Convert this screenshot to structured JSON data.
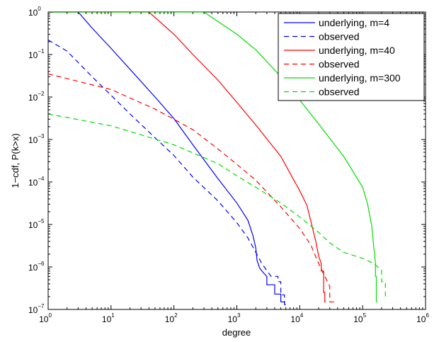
{
  "chart_data": {
    "type": "line",
    "title": "",
    "xlabel": "degree",
    "ylabel": "1−cdf, P(k>x)",
    "x_scale": "log",
    "y_scale": "log",
    "xlim": [
      1,
      1000000
    ],
    "ylim": [
      1e-07,
      1
    ],
    "x_ticks": [
      {
        "base": "10",
        "exp": "0",
        "value": 1
      },
      {
        "base": "10",
        "exp": "1",
        "value": 10
      },
      {
        "base": "10",
        "exp": "2",
        "value": 100
      },
      {
        "base": "10",
        "exp": "3",
        "value": 1000
      },
      {
        "base": "10",
        "exp": "4",
        "value": 10000
      },
      {
        "base": "10",
        "exp": "5",
        "value": 100000
      },
      {
        "base": "10",
        "exp": "6",
        "value": 1000000
      }
    ],
    "y_ticks": [
      {
        "base": "10",
        "exp": "0",
        "value": 1
      },
      {
        "base": "10",
        "exp": "−1",
        "value": 0.1
      },
      {
        "base": "10",
        "exp": "−2",
        "value": 0.01
      },
      {
        "base": "10",
        "exp": "−3",
        "value": 0.001
      },
      {
        "base": "10",
        "exp": "−4",
        "value": 0.0001
      },
      {
        "base": "10",
        "exp": "−5",
        "value": 1e-05
      },
      {
        "base": "10",
        "exp": "−6",
        "value": 1e-06
      },
      {
        "base": "10",
        "exp": "−7",
        "value": 1e-07
      }
    ],
    "grid": false,
    "legend_position": "top-right",
    "series": [
      {
        "name": "underlying, m=4",
        "color": "#0000ff",
        "style": "solid",
        "points": [
          [
            1,
            1
          ],
          [
            3,
            1
          ],
          [
            5,
            0.42
          ],
          [
            10,
            0.14
          ],
          [
            20,
            0.045
          ],
          [
            50,
            0.01
          ],
          [
            100,
            0.0031
          ],
          [
            200,
            0.00075
          ],
          [
            500,
            0.00012
          ],
          [
            1000,
            3.2e-05
          ],
          [
            1500,
            1.25e-05
          ],
          [
            1800,
            5.5e-06
          ],
          [
            2000,
            2.8e-06
          ],
          [
            2100,
            1.4e-06
          ],
          [
            2300,
            9.5e-07
          ],
          [
            2600,
            7.5e-07
          ],
          [
            3000,
            6e-07
          ],
          [
            3000,
            3.8e-07
          ],
          [
            4000,
            3.8e-07
          ],
          [
            4000,
            2.3e-07
          ],
          [
            5000,
            2.3e-07
          ],
          [
            5000,
            1.5e-07
          ],
          [
            5900,
            1.5e-07
          ]
        ]
      },
      {
        "name": "observed",
        "color": "#0000ff",
        "style": "dashed",
        "points": [
          [
            1,
            0.22
          ],
          [
            2,
            0.12
          ],
          [
            5,
            0.03
          ],
          [
            10,
            0.011
          ],
          [
            20,
            0.004
          ],
          [
            50,
            0.0011
          ],
          [
            100,
            0.00042
          ],
          [
            200,
            0.00013
          ],
          [
            500,
            3.6e-05
          ],
          [
            1000,
            1.1e-05
          ],
          [
            1500,
            4.8e-06
          ],
          [
            2000,
            2.2e-06
          ],
          [
            2500,
            1.2e-06
          ],
          [
            3000,
            8.2e-07
          ],
          [
            3500,
            6e-07
          ],
          [
            4500,
            6e-07
          ],
          [
            4500,
            4.5e-07
          ],
          [
            5000,
            4.5e-07
          ],
          [
            5000,
            2.2e-07
          ],
          [
            5700,
            2.2e-07
          ],
          [
            5700,
            1.3e-07
          ],
          [
            6000,
            1.3e-07
          ]
        ]
      },
      {
        "name": "underlying, m=40",
        "color": "#ff0000",
        "style": "solid",
        "points": [
          [
            1,
            1
          ],
          [
            40,
            1
          ],
          [
            100,
            0.3
          ],
          [
            200,
            0.1
          ],
          [
            500,
            0.025
          ],
          [
            1000,
            0.0075
          ],
          [
            2000,
            0.0022
          ],
          [
            5000,
            0.0004
          ],
          [
            10000,
            6.2e-05
          ],
          [
            13000,
            2.8e-05
          ],
          [
            15000,
            1.2e-05
          ],
          [
            18000,
            4e-06
          ],
          [
            20000,
            1.8e-06
          ],
          [
            22000,
            1.2e-06
          ],
          [
            22000,
            8e-07
          ],
          [
            24000,
            8e-07
          ],
          [
            24000,
            2.5e-07
          ],
          [
            25000,
            2.5e-07
          ],
          [
            25000,
            1.5e-07
          ],
          [
            26000,
            1.5e-07
          ]
        ]
      },
      {
        "name": "observed",
        "color": "#ff0000",
        "style": "dashed",
        "points": [
          [
            1,
            0.035
          ],
          [
            10,
            0.015
          ],
          [
            50,
            0.0052
          ],
          [
            100,
            0.003
          ],
          [
            200,
            0.0017
          ],
          [
            500,
            0.0006
          ],
          [
            1000,
            0.00026
          ],
          [
            2000,
            0.00011
          ],
          [
            5000,
            2.6e-05
          ],
          [
            10000,
            8e-06
          ],
          [
            15000,
            3.3e-06
          ],
          [
            20000,
            1.2e-06
          ],
          [
            25000,
            6e-07
          ],
          [
            30000,
            3.5e-07
          ],
          [
            30000,
            1.5e-07
          ],
          [
            36000,
            1.5e-07
          ]
        ]
      },
      {
        "name": "underlying, m=300",
        "color": "#00dd00",
        "style": "solid",
        "points": [
          [
            1,
            1
          ],
          [
            300,
            1
          ],
          [
            1000,
            0.3
          ],
          [
            2000,
            0.13
          ],
          [
            5000,
            0.03
          ],
          [
            10000,
            0.0085
          ],
          [
            20000,
            0.0023
          ],
          [
            50000,
            0.0004
          ],
          [
            100000,
            7.5e-05
          ],
          [
            120000,
            3e-05
          ],
          [
            140000,
            9e-06
          ],
          [
            150000,
            3e-06
          ],
          [
            160000,
            1.2e-06
          ],
          [
            160000,
            6e-07
          ],
          [
            165000,
            6e-07
          ],
          [
            165000,
            1.5e-07
          ],
          [
            170000,
            1.5e-07
          ]
        ]
      },
      {
        "name": "observed",
        "color": "#00dd00",
        "style": "dashed",
        "points": [
          [
            1,
            0.004
          ],
          [
            10,
            0.0021
          ],
          [
            100,
            0.00075
          ],
          [
            500,
            0.00027
          ],
          [
            1000,
            0.00014
          ],
          [
            2000,
            7.5e-05
          ],
          [
            5000,
            3.2e-05
          ],
          [
            10000,
            1.5e-05
          ],
          [
            20000,
            6.5e-06
          ],
          [
            30000,
            3.7e-06
          ],
          [
            50000,
            2.2e-06
          ],
          [
            100000,
            1.6e-06
          ],
          [
            150000,
            1.2e-06
          ],
          [
            200000,
            8.5e-07
          ],
          [
            200000,
            4.5e-07
          ],
          [
            230000,
            4.5e-07
          ],
          [
            230000,
            1.8e-07
          ],
          [
            240000,
            1.8e-07
          ]
        ]
      }
    ]
  }
}
